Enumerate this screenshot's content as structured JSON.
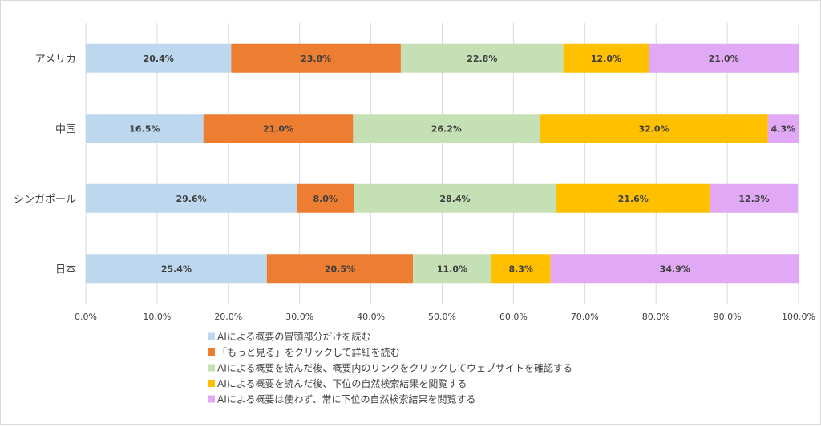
{
  "chart_data": {
    "type": "bar",
    "orientation": "horizontal",
    "stacked": true,
    "categories": [
      "アメリカ",
      "中国",
      "シンガポール",
      "日本"
    ],
    "series": [
      {
        "name": "AIによる概要の冒頭部分だけを読む",
        "color": "#bdd7ee",
        "values": [
          20.4,
          16.5,
          29.6,
          25.4
        ]
      },
      {
        "name": "「もっと見る」をクリックして詳細を読む",
        "color": "#ed7d31",
        "values": [
          23.8,
          21.0,
          8.0,
          20.5
        ]
      },
      {
        "name": "AIによる概要を読んだ後、概要内のリンクをクリックしてウェブサイトを確認する",
        "color": "#c5e0b4",
        "values": [
          22.8,
          26.2,
          28.4,
          11.0
        ]
      },
      {
        "name": "AIによる概要を読んだ後、下位の自然検索結果を閲覧する",
        "color": "#ffc000",
        "values": [
          12.0,
          32.0,
          21.6,
          8.3
        ]
      },
      {
        "name": "AIによる概要は使わず、常に下位の自然検索結果を閲覧する",
        "color": "#e1a8f5",
        "values": [
          21.0,
          4.3,
          12.3,
          34.9
        ]
      }
    ],
    "xlim": [
      0,
      100
    ],
    "xticks": [
      "0.0%",
      "10.0%",
      "20.0%",
      "30.0%",
      "40.0%",
      "50.0%",
      "60.0%",
      "70.0%",
      "80.0%",
      "90.0%",
      "100.0%"
    ],
    "value_format": "percent-1dp",
    "grid": true,
    "legend_position": "bottom"
  }
}
